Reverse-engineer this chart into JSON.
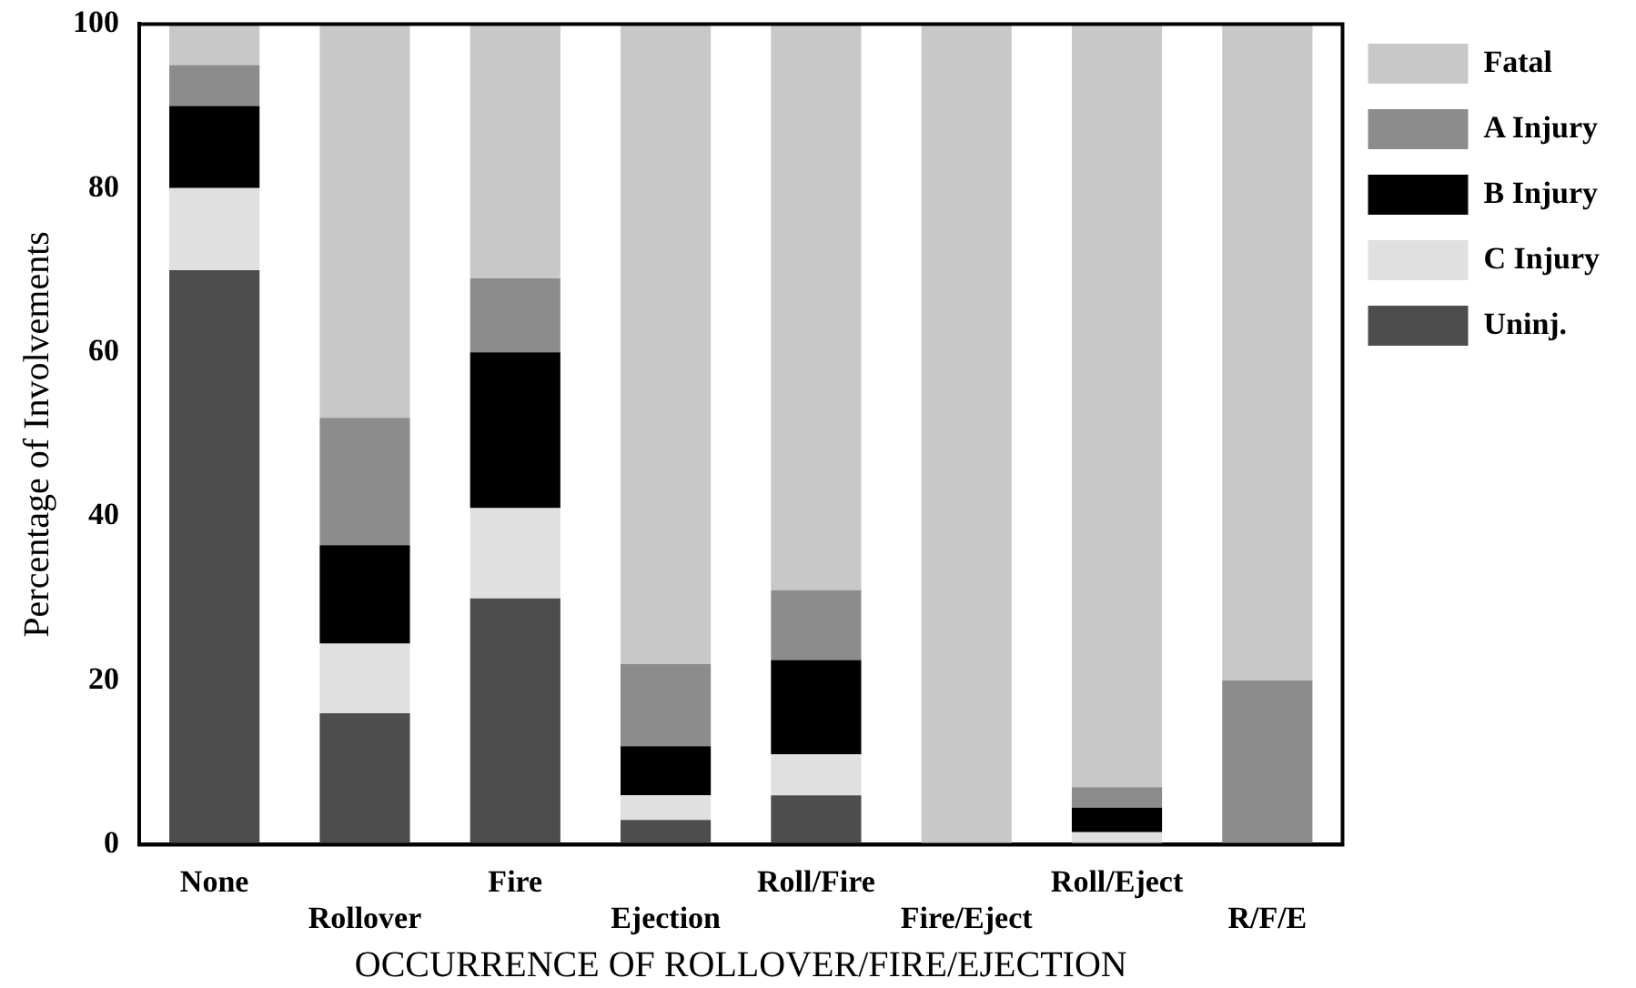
{
  "chart_data": {
    "type": "bar",
    "stacked": true,
    "xlabel": "OCCURRENCE OF ROLLOVER/FIRE/EJECTION",
    "ylabel": "Percentage of Involvements",
    "categories": [
      "None",
      "Rollover",
      "Fire",
      "Ejection",
      "Roll/Fire",
      "Fire/Eject",
      "Roll/Eject",
      "R/F/E"
    ],
    "ylim": [
      0,
      100
    ],
    "yticks": [
      0,
      20,
      40,
      60,
      80,
      100
    ],
    "grid": false,
    "legend": "right",
    "series": [
      {
        "name": "Uninj.",
        "color": "#4d4d4d",
        "values": [
          70,
          16,
          30,
          3,
          6,
          0,
          0,
          0
        ]
      },
      {
        "name": "C Injury",
        "color": "#e0e0e0",
        "values": [
          10,
          8.5,
          11,
          3,
          5,
          0,
          1.5,
          0
        ]
      },
      {
        "name": "B Injury",
        "color": "#000000",
        "values": [
          10,
          12,
          19,
          6,
          11.5,
          0,
          3,
          0
        ]
      },
      {
        "name": "A Injury",
        "color": "#8c8c8c",
        "values": [
          5,
          15.5,
          9,
          10,
          8.5,
          0,
          2.5,
          20
        ]
      },
      {
        "name": "Fatal",
        "color": "#c8c8c8",
        "values": [
          5,
          48,
          31,
          78,
          69,
          100,
          93,
          80
        ]
      }
    ]
  }
}
